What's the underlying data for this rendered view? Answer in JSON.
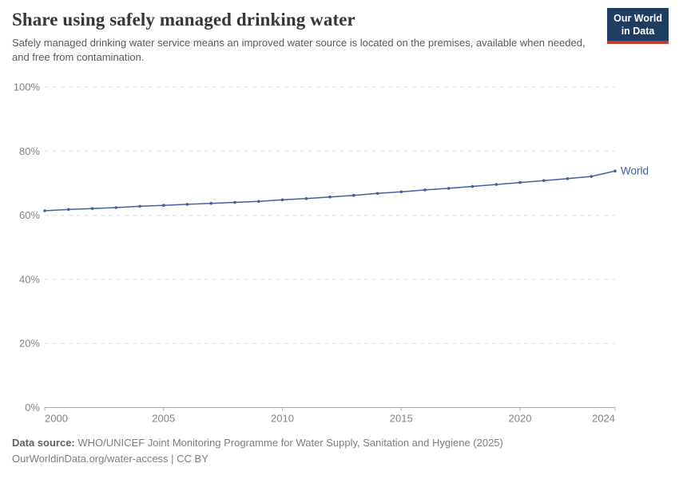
{
  "header": {
    "title": "Share using safely managed drinking water",
    "subtitle": "Safely managed drinking water service means an improved water source is located on the premises, available when needed, and free from contamination.",
    "logo": {
      "line1": "Our World",
      "line2": "in Data"
    }
  },
  "chart_data": {
    "type": "line",
    "title": "Share using safely managed drinking water",
    "xlabel": "",
    "ylabel": "",
    "xlim": [
      2000,
      2024
    ],
    "ylim": [
      0,
      100
    ],
    "grid": "horizontal-dashed",
    "legend_position": "end-of-line-label",
    "x_ticks": [
      {
        "value": 2000,
        "label": "2000"
      },
      {
        "value": 2005,
        "label": "2005"
      },
      {
        "value": 2010,
        "label": "2010"
      },
      {
        "value": 2015,
        "label": "2015"
      },
      {
        "value": 2020,
        "label": "2020"
      },
      {
        "value": 2024,
        "label": "2024"
      }
    ],
    "y_ticks": [
      {
        "value": 0,
        "label": "0%"
      },
      {
        "value": 20,
        "label": "20%"
      },
      {
        "value": 40,
        "label": "40%"
      },
      {
        "value": 60,
        "label": "60%"
      },
      {
        "value": 80,
        "label": "80%"
      },
      {
        "value": 100,
        "label": "100%"
      }
    ],
    "series": [
      {
        "name": "World",
        "color": "#3e61a2",
        "x": [
          2000,
          2001,
          2002,
          2003,
          2004,
          2005,
          2006,
          2007,
          2008,
          2009,
          2010,
          2011,
          2012,
          2013,
          2014,
          2015,
          2016,
          2017,
          2018,
          2019,
          2020,
          2021,
          2022,
          2023,
          2024
        ],
        "values": [
          61.4,
          61.8,
          62.1,
          62.4,
          62.8,
          63.1,
          63.4,
          63.7,
          64.0,
          64.3,
          64.8,
          65.2,
          65.7,
          66.2,
          66.8,
          67.3,
          67.9,
          68.4,
          69.0,
          69.6,
          70.2,
          70.8,
          71.4,
          72.1,
          73.8
        ]
      }
    ],
    "colors": {
      "gridline": "#e0e0e0",
      "axis_line": "#adadad",
      "tick_label": "#848484",
      "series_blue": "#3e61a2"
    }
  },
  "footer": {
    "source_label": "Data source:",
    "source_text": "WHO/UNICEF Joint Monitoring Programme for Water Supply, Sanitation and Hygiene (2025)",
    "license_line": "OurWorldinData.org/water-access | CC BY"
  }
}
